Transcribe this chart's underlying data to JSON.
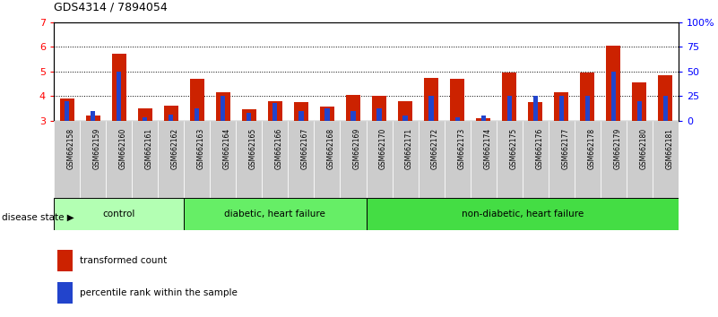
{
  "title": "GDS4314 / 7894054",
  "samples": [
    "GSM662158",
    "GSM662159",
    "GSM662160",
    "GSM662161",
    "GSM662162",
    "GSM662163",
    "GSM662164",
    "GSM662165",
    "GSM662166",
    "GSM662167",
    "GSM662168",
    "GSM662169",
    "GSM662170",
    "GSM662171",
    "GSM662172",
    "GSM662173",
    "GSM662174",
    "GSM662175",
    "GSM662176",
    "GSM662177",
    "GSM662178",
    "GSM662179",
    "GSM662180",
    "GSM662181"
  ],
  "red_values": [
    3.9,
    3.2,
    5.7,
    3.5,
    3.6,
    4.7,
    4.15,
    3.47,
    3.8,
    3.75,
    3.55,
    4.05,
    4.0,
    3.8,
    4.75,
    4.7,
    3.1,
    4.95,
    3.75,
    4.15,
    4.95,
    6.05,
    4.55,
    4.85
  ],
  "blue_pct": [
    20,
    10,
    50,
    3,
    6,
    12,
    25,
    8,
    18,
    10,
    12,
    10,
    12,
    5,
    25,
    3,
    5,
    25,
    25,
    25,
    25,
    50,
    20,
    25
  ],
  "groups": [
    {
      "label": "control",
      "start": 0,
      "end": 5,
      "color": "#b3ffb3"
    },
    {
      "label": "diabetic, heart failure",
      "start": 5,
      "end": 12,
      "color": "#66ee66"
    },
    {
      "label": "non-diabetic, heart failure",
      "start": 12,
      "end": 24,
      "color": "#44dd44"
    }
  ],
  "ymin": 3,
  "ymax": 7,
  "yticks_left": [
    3,
    4,
    5,
    6,
    7
  ],
  "yticks_right": [
    0,
    25,
    50,
    75,
    100
  ],
  "ytick_labels_right": [
    "0",
    "25",
    "50",
    "75",
    "100%"
  ],
  "bar_color_red": "#cc2200",
  "bar_color_blue": "#2244cc",
  "tick_bg_color": "#cccccc",
  "bar_width": 0.55,
  "blue_bar_width": 0.18,
  "legend_red": "transformed count",
  "legend_blue": "percentile rank within the sample",
  "disease_state_label": "disease state"
}
